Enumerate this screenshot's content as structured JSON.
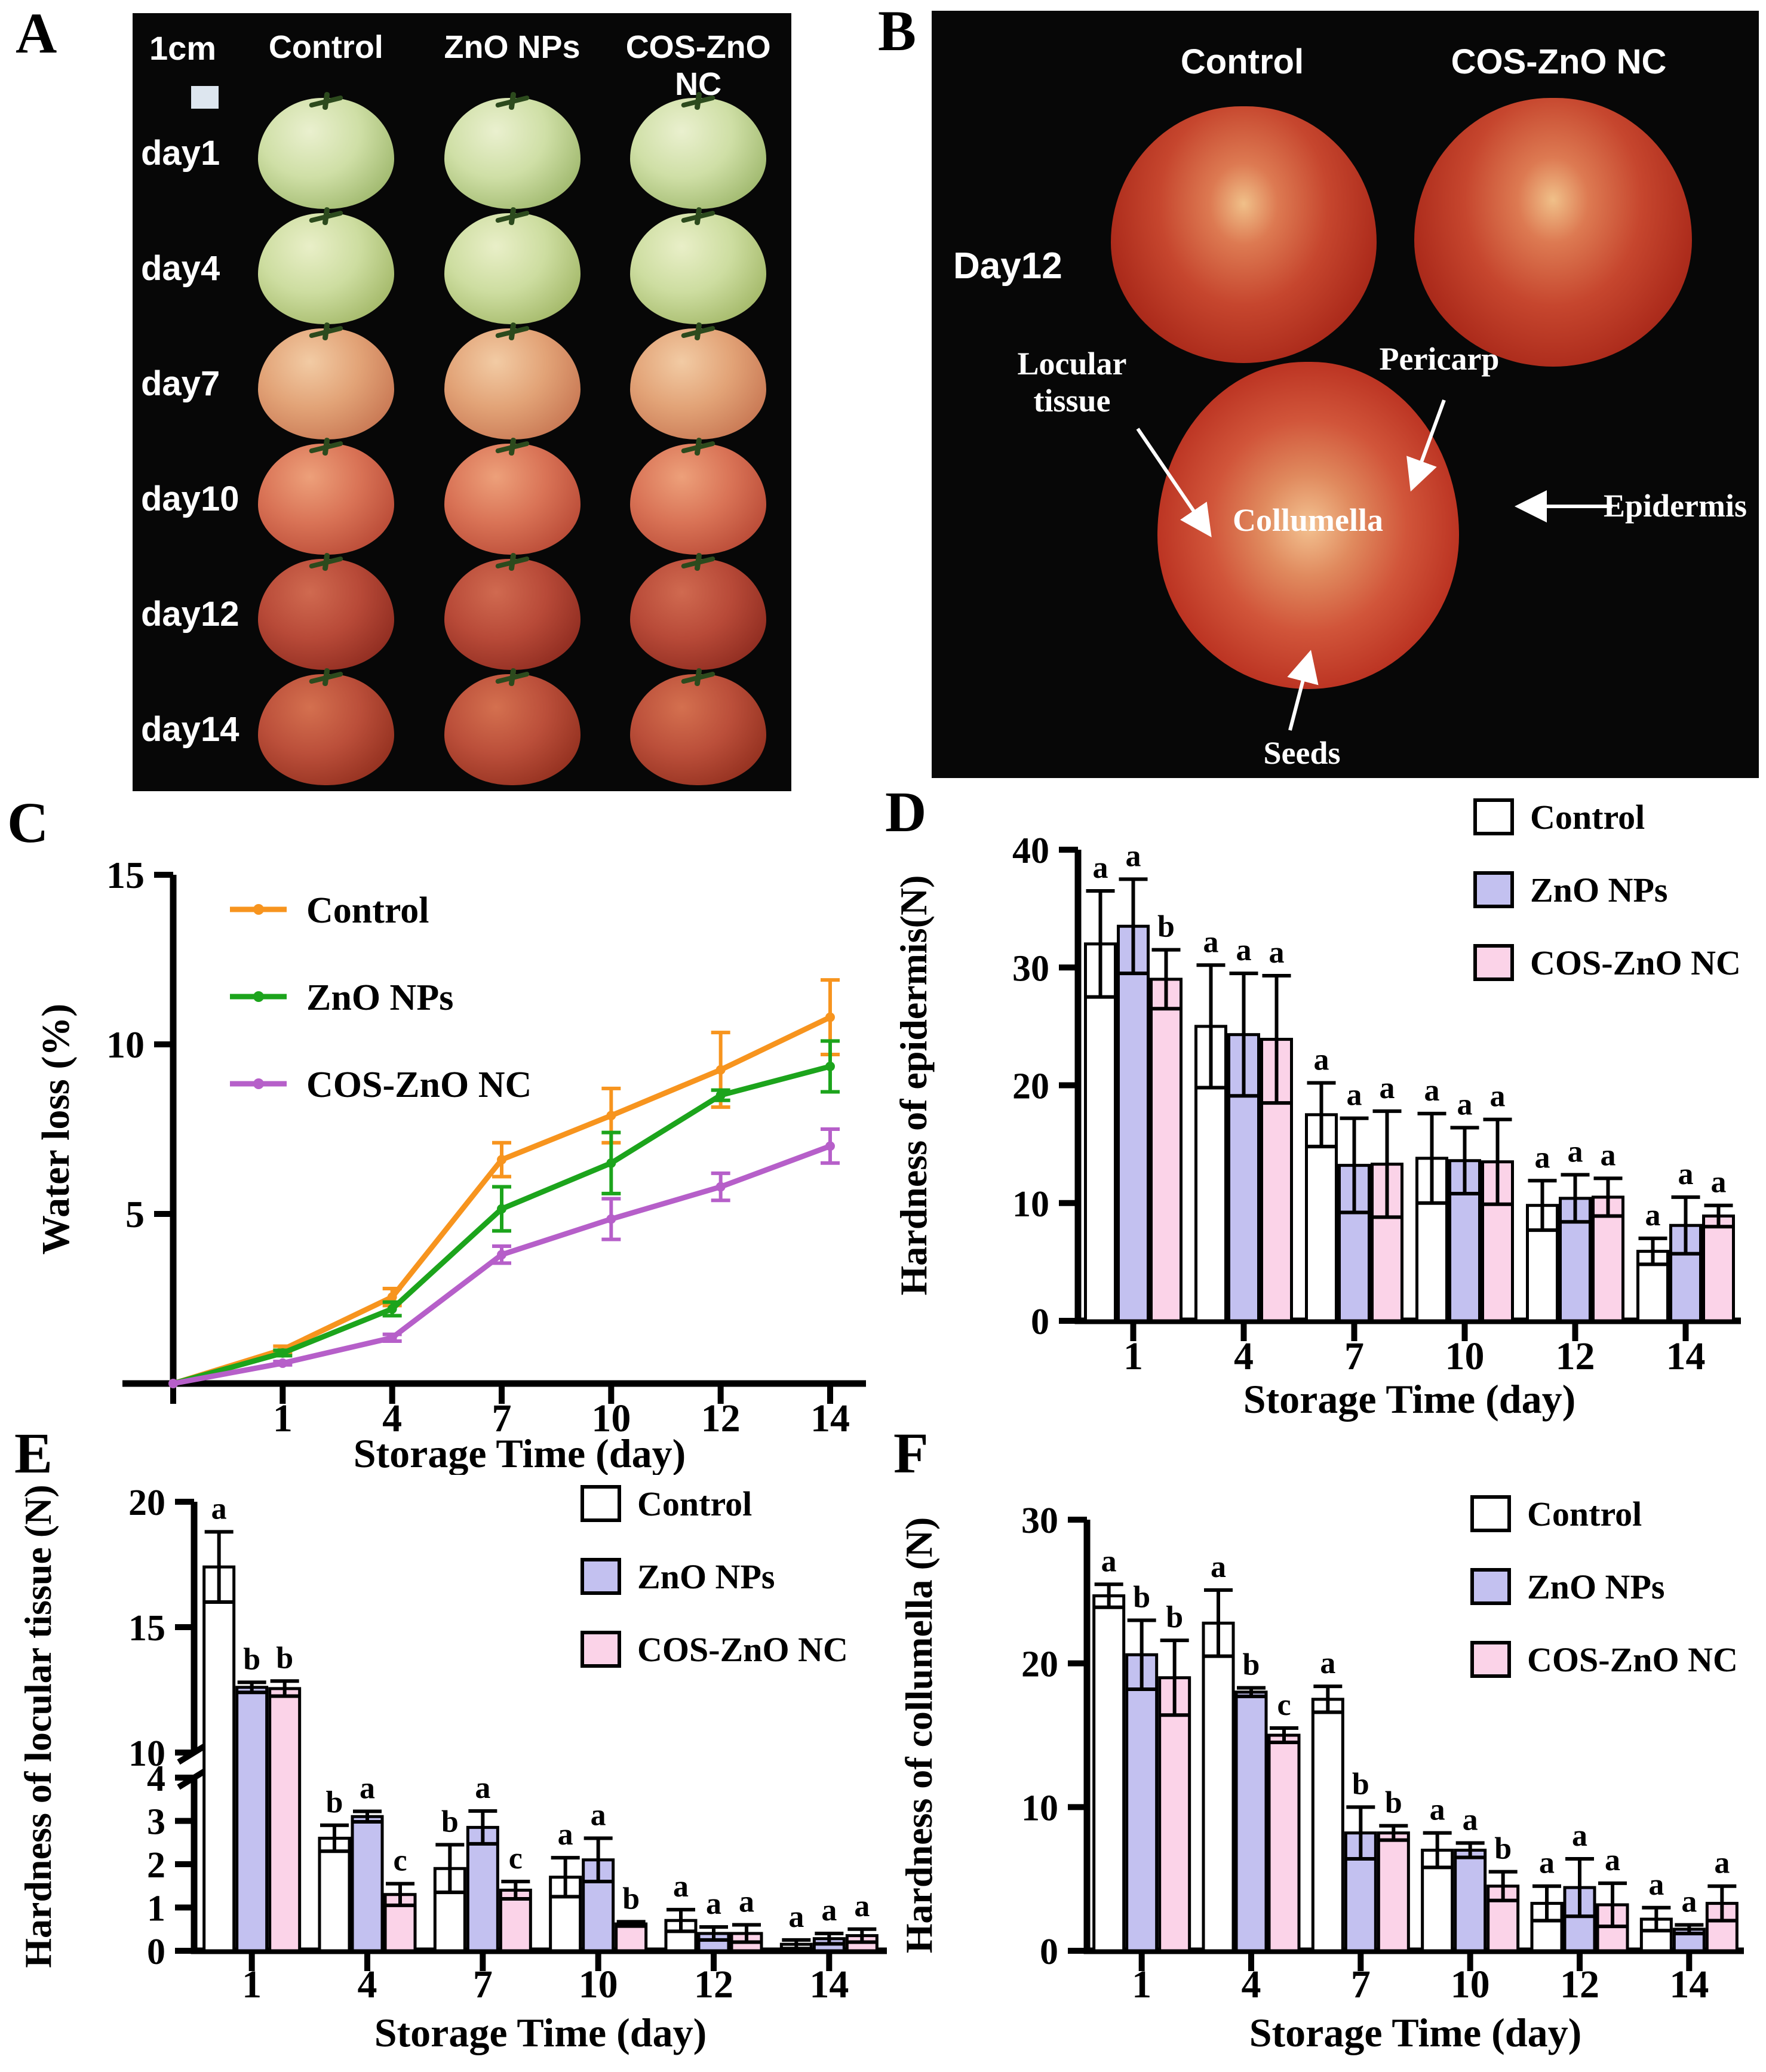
{
  "panels": {
    "A": {
      "letter": "A",
      "scale_label": "1cm",
      "col_headers": [
        "Control",
        "ZnO NPs",
        "COS-ZnO NC"
      ],
      "rows": [
        {
          "label": "day1",
          "hi": "#eaf0cf",
          "mid": "#cfdfa6",
          "outer": "#9fb86d"
        },
        {
          "label": "day4",
          "hi": "#e9efc8",
          "mid": "#cddda0",
          "outer": "#a3b868"
        },
        {
          "label": "day7",
          "hi": "#f2cba4",
          "mid": "#e2a377",
          "outer": "#c87753"
        },
        {
          "label": "day10",
          "hi": "#eda07a",
          "mid": "#d97356",
          "outer": "#b94a36"
        },
        {
          "label": "day12",
          "hi": "#d06a50",
          "mid": "#b84a38",
          "outer": "#8f2c20"
        },
        {
          "label": "day14",
          "hi": "#d4704f",
          "mid": "#bb4f3a",
          "outer": "#93301f"
        }
      ]
    },
    "B": {
      "letter": "B",
      "col_headers": [
        "Control",
        "COS-ZnO NC"
      ],
      "row_label": "Day12",
      "annotations": {
        "locular": "Locular tissue",
        "pericarp": "Pericarp",
        "collumella": "Collumella",
        "epidermis": "Epidermis",
        "seeds": "Seeds"
      }
    },
    "C": {
      "letter": "C"
    },
    "D": {
      "letter": "D"
    },
    "E": {
      "letter": "E"
    },
    "F": {
      "letter": "F"
    }
  },
  "chart_data": [
    {
      "type": "line",
      "title": "",
      "xlabel": "Storage Time (day)",
      "ylabel": "Water loss (%)",
      "x": [
        0,
        1,
        4,
        7,
        10,
        12,
        14
      ],
      "x_ticks": [
        "",
        "1",
        "4",
        "7",
        "10",
        "12",
        "14"
      ],
      "ylim": [
        0,
        15
      ],
      "yticks": [
        5,
        10,
        15
      ],
      "grid": false,
      "legend_position": "top-left",
      "series": [
        {
          "name": "Control",
          "color": "#F7941E",
          "values": [
            0,
            1.0,
            2.55,
            6.6,
            7.9,
            9.25,
            10.8
          ],
          "errors": [
            0,
            0.1,
            0.25,
            0.5,
            0.8,
            1.1,
            1.1
          ]
        },
        {
          "name": "ZnO NPs",
          "color": "#1CA41C",
          "values": [
            0,
            0.9,
            2.2,
            5.15,
            6.5,
            8.5,
            9.35
          ],
          "errors": [
            0,
            0.08,
            0.2,
            0.65,
            0.9,
            0.15,
            0.75
          ]
        },
        {
          "name": "COS-ZnO NC",
          "color": "#B65FC9",
          "values": [
            0,
            0.6,
            1.35,
            3.8,
            4.85,
            5.8,
            7.0
          ],
          "errors": [
            0,
            0.05,
            0.1,
            0.25,
            0.6,
            0.4,
            0.5
          ]
        }
      ]
    },
    {
      "type": "bar",
      "title": "",
      "xlabel": "Storage Time (day)",
      "ylabel": "Hardness of epidermis(N)",
      "categories": [
        "1",
        "4",
        "7",
        "10",
        "12",
        "14"
      ],
      "ylim": [
        0,
        40
      ],
      "yticks": [
        0,
        10,
        20,
        30,
        40
      ],
      "grid": false,
      "legend_position": "top-right",
      "series": [
        {
          "name": "Control",
          "fill": "#FFFFFF",
          "values": [
            32,
            25,
            17.5,
            13.8,
            9.8,
            5.9
          ],
          "errors": [
            4.5,
            5.2,
            2.7,
            3.8,
            2.1,
            1.1
          ],
          "letters": [
            "a",
            "a",
            "a",
            "a",
            "a",
            "a"
          ]
        },
        {
          "name": "ZnO NPs",
          "fill": "#C3C1F0",
          "values": [
            33.5,
            24.3,
            13.2,
            13.6,
            10.4,
            8.1
          ],
          "errors": [
            4.0,
            5.2,
            4.0,
            2.8,
            2.0,
            2.4
          ],
          "letters": [
            "a",
            "a",
            "a",
            "a",
            "a",
            "a"
          ]
        },
        {
          "name": "COS-ZnO NC",
          "fill": "#FBD3E8",
          "values": [
            29,
            23.9,
            13.3,
            13.5,
            10.5,
            8.9
          ],
          "errors": [
            2.5,
            5.4,
            4.5,
            3.6,
            1.6,
            0.9
          ],
          "letters": [
            "b",
            "a",
            "a",
            "a",
            "a",
            "a"
          ]
        }
      ]
    },
    {
      "type": "bar",
      "title": "",
      "xlabel": "Storage Time (day)",
      "ylabel": "Hardness of locular tissue (N)",
      "categories": [
        "1",
        "4",
        "7",
        "10",
        "12",
        "14"
      ],
      "broken_axis": {
        "lower": [
          0,
          4
        ],
        "upper": [
          10,
          20
        ],
        "lower_ticks": [
          0,
          1,
          2,
          3,
          4
        ],
        "upper_ticks": [
          10,
          15,
          20
        ]
      },
      "grid": false,
      "legend_position": "top-right",
      "series": [
        {
          "name": "Control",
          "fill": "#FFFFFF",
          "values": [
            17.4,
            2.6,
            1.9,
            1.7,
            0.7,
            0.15
          ],
          "errors": [
            1.4,
            0.3,
            0.55,
            0.45,
            0.25,
            0.1
          ],
          "letters": [
            "a",
            "b",
            "b",
            "a",
            "a",
            "a"
          ]
        },
        {
          "name": "ZnO NPs",
          "fill": "#C3C1F0",
          "values": [
            12.6,
            3.1,
            2.85,
            2.1,
            0.4,
            0.28
          ],
          "errors": [
            0.2,
            0.12,
            0.38,
            0.5,
            0.15,
            0.12
          ],
          "letters": [
            "b",
            "a",
            "a",
            "a",
            "a",
            "a"
          ]
        },
        {
          "name": "COS-ZnO NC",
          "fill": "#FBD3E8",
          "values": [
            12.55,
            1.3,
            1.4,
            0.62,
            0.4,
            0.35
          ],
          "errors": [
            0.3,
            0.25,
            0.2,
            0.05,
            0.2,
            0.15
          ],
          "letters": [
            "b",
            "c",
            "c",
            "b",
            "a",
            "a"
          ]
        }
      ]
    },
    {
      "type": "bar",
      "title": "",
      "xlabel": "Storage Time (day)",
      "ylabel": "Hardness of collumella (N)",
      "categories": [
        "1",
        "4",
        "7",
        "10",
        "12",
        "14"
      ],
      "ylim": [
        0,
        30
      ],
      "yticks": [
        0,
        10,
        20,
        30
      ],
      "grid": false,
      "legend_position": "top-right",
      "series": [
        {
          "name": "Control",
          "fill": "#FFFFFF",
          "values": [
            24.7,
            22.8,
            17.5,
            7.0,
            3.3,
            2.2
          ],
          "errors": [
            0.8,
            2.3,
            0.9,
            1.2,
            1.2,
            0.8
          ],
          "letters": [
            "a",
            "a",
            "a",
            "a",
            "a",
            "a"
          ]
        },
        {
          "name": "ZnO NPs",
          "fill": "#C3C1F0",
          "values": [
            20.6,
            18.0,
            8.2,
            7.0,
            4.4,
            1.5
          ],
          "errors": [
            2.4,
            0.3,
            1.8,
            0.5,
            2.0,
            0.3
          ],
          "letters": [
            "b",
            "b",
            "b",
            "a",
            "a",
            "a"
          ]
        },
        {
          "name": "COS-ZnO NC",
          "fill": "#FBD3E8",
          "values": [
            19.0,
            15.0,
            8.2,
            4.5,
            3.2,
            3.3
          ],
          "errors": [
            2.6,
            0.5,
            0.5,
            1.0,
            1.5,
            1.2
          ],
          "letters": [
            "b",
            "c",
            "b",
            "b",
            "a",
            "a"
          ]
        }
      ]
    }
  ]
}
